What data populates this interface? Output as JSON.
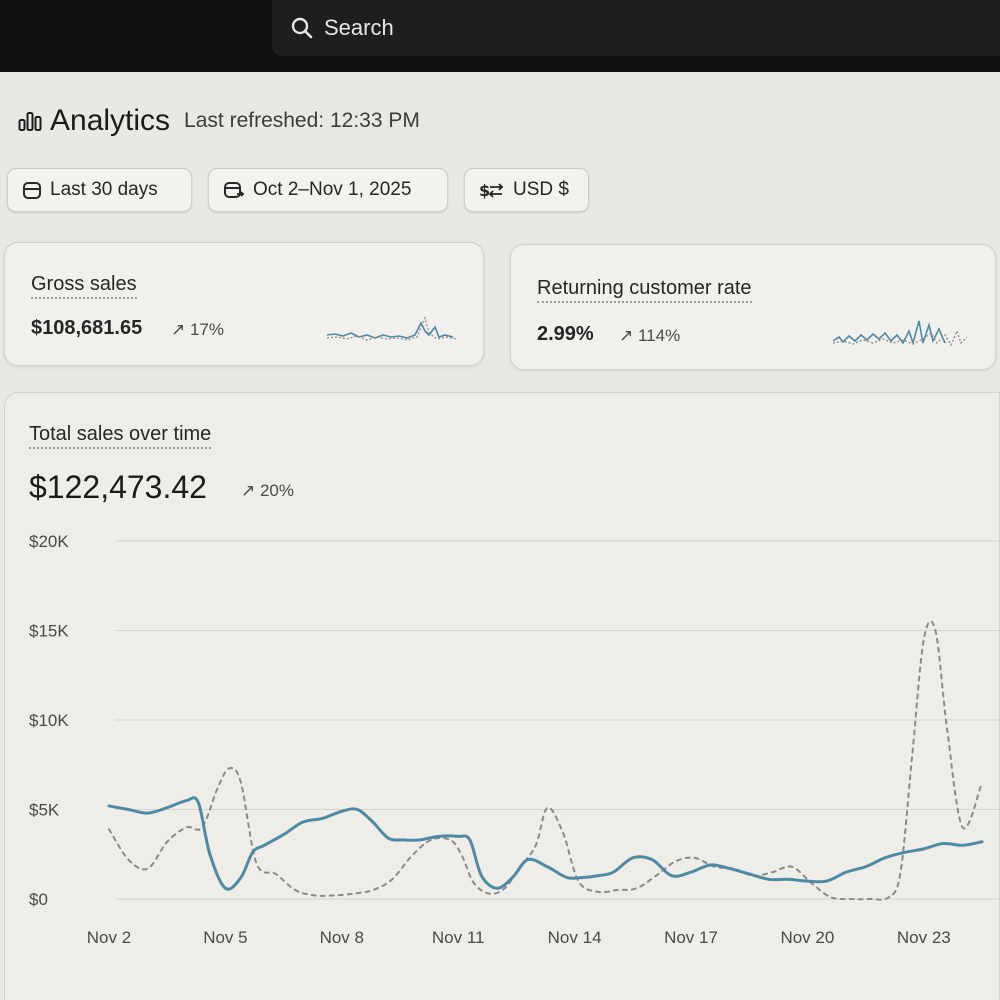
{
  "search": {
    "placeholder": "Search"
  },
  "header": {
    "title": "Analytics",
    "refreshed": "Last refreshed: 12:33 PM"
  },
  "filters": {
    "period": "Last 30 days",
    "date_range": "Oct 2–Nov 1, 2025",
    "currency": "USD $"
  },
  "metrics": {
    "gross_sales": {
      "label": "Gross sales",
      "value": "$108,681.65",
      "delta": "17%"
    },
    "returning_rate": {
      "label": "Returning customer rate",
      "value": "2.99%",
      "delta": "114%"
    }
  },
  "chart_data": {
    "type": "line",
    "title": "Total sales over time",
    "total": "$122,473.42",
    "delta": "20%",
    "ylim": [
      0,
      20000
    ],
    "y_ticks": [
      {
        "value": 0,
        "label": "$0"
      },
      {
        "value": 5000,
        "label": "$5K"
      },
      {
        "value": 10000,
        "label": "$10K"
      },
      {
        "value": 15000,
        "label": "$15K"
      },
      {
        "value": 20000,
        "label": "$20K"
      }
    ],
    "x_ticks": [
      {
        "day": 2,
        "label": "Nov 2"
      },
      {
        "day": 5,
        "label": "Nov 5"
      },
      {
        "day": 8,
        "label": "Nov 8"
      },
      {
        "day": 11,
        "label": "Nov 11"
      },
      {
        "day": 14,
        "label": "Nov 14"
      },
      {
        "day": 17,
        "label": "Nov 17"
      },
      {
        "day": 20,
        "label": "Nov 20"
      },
      {
        "day": 23,
        "label": "Nov 23"
      }
    ],
    "grid": true,
    "series": [
      {
        "style": "solid",
        "color": "#4e8aa6",
        "x": [
          2,
          2.5,
          3,
          3.5,
          4,
          4.3,
          4.6,
          5,
          5.4,
          5.7,
          6,
          6.5,
          7,
          7.5,
          8,
          8.4,
          8.8,
          9.2,
          9.6,
          10,
          10.5,
          11,
          11.3,
          11.6,
          12,
          12.4,
          12.8,
          13.3,
          13.8,
          14.2,
          14.6,
          15,
          15.5,
          16,
          16.5,
          17,
          17.5,
          18,
          18.5,
          19,
          19.5,
          20,
          20.5,
          21,
          21.5,
          22,
          22.5,
          23,
          23.5,
          24,
          24.5
        ],
        "values": [
          5200,
          5000,
          4800,
          5100,
          5500,
          5400,
          2500,
          600,
          1200,
          2600,
          3000,
          3600,
          4300,
          4500,
          4900,
          5000,
          4300,
          3400,
          3300,
          3300,
          3500,
          3500,
          3300,
          1300,
          600,
          1200,
          2200,
          1800,
          1200,
          1200,
          1300,
          1500,
          2300,
          2200,
          1300,
          1500,
          1900,
          1700,
          1400,
          1100,
          1100,
          1000,
          1000,
          1500,
          1800,
          2300,
          2600,
          2800,
          3100,
          3000,
          3200
        ]
      },
      {
        "style": "dashed",
        "color": "#8b8b8b",
        "x": [
          2,
          2.5,
          3,
          3.5,
          4,
          4.4,
          4.8,
          5.1,
          5.4,
          5.8,
          6.3,
          6.8,
          7.3,
          7.8,
          8.3,
          8.8,
          9.3,
          9.8,
          10.3,
          10.8,
          11.1,
          11.4,
          11.8,
          12.2,
          12.6,
          13,
          13.3,
          13.7,
          14.1,
          14.6,
          15.1,
          15.6,
          16.1,
          16.6,
          17.1,
          17.6,
          18.1,
          18.6,
          19.1,
          19.6,
          20.1,
          20.6,
          21.1,
          21.6,
          22.1,
          22.4,
          22.7,
          23,
          23.3,
          23.6,
          24,
          24.5
        ],
        "values": [
          3900,
          2200,
          1700,
          3200,
          4000,
          4000,
          6200,
          7300,
          6500,
          2000,
          1400,
          500,
          200,
          200,
          300,
          500,
          1100,
          2400,
          3300,
          3300,
          2400,
          900,
          300,
          600,
          1800,
          3000,
          5100,
          3700,
          1000,
          400,
          500,
          600,
          1300,
          2100,
          2300,
          1800,
          1700,
          1300,
          1500,
          1800,
          900,
          100,
          0,
          0,
          100,
          1500,
          8000,
          14500,
          15000,
          9500,
          4000,
          6500
        ]
      }
    ]
  }
}
